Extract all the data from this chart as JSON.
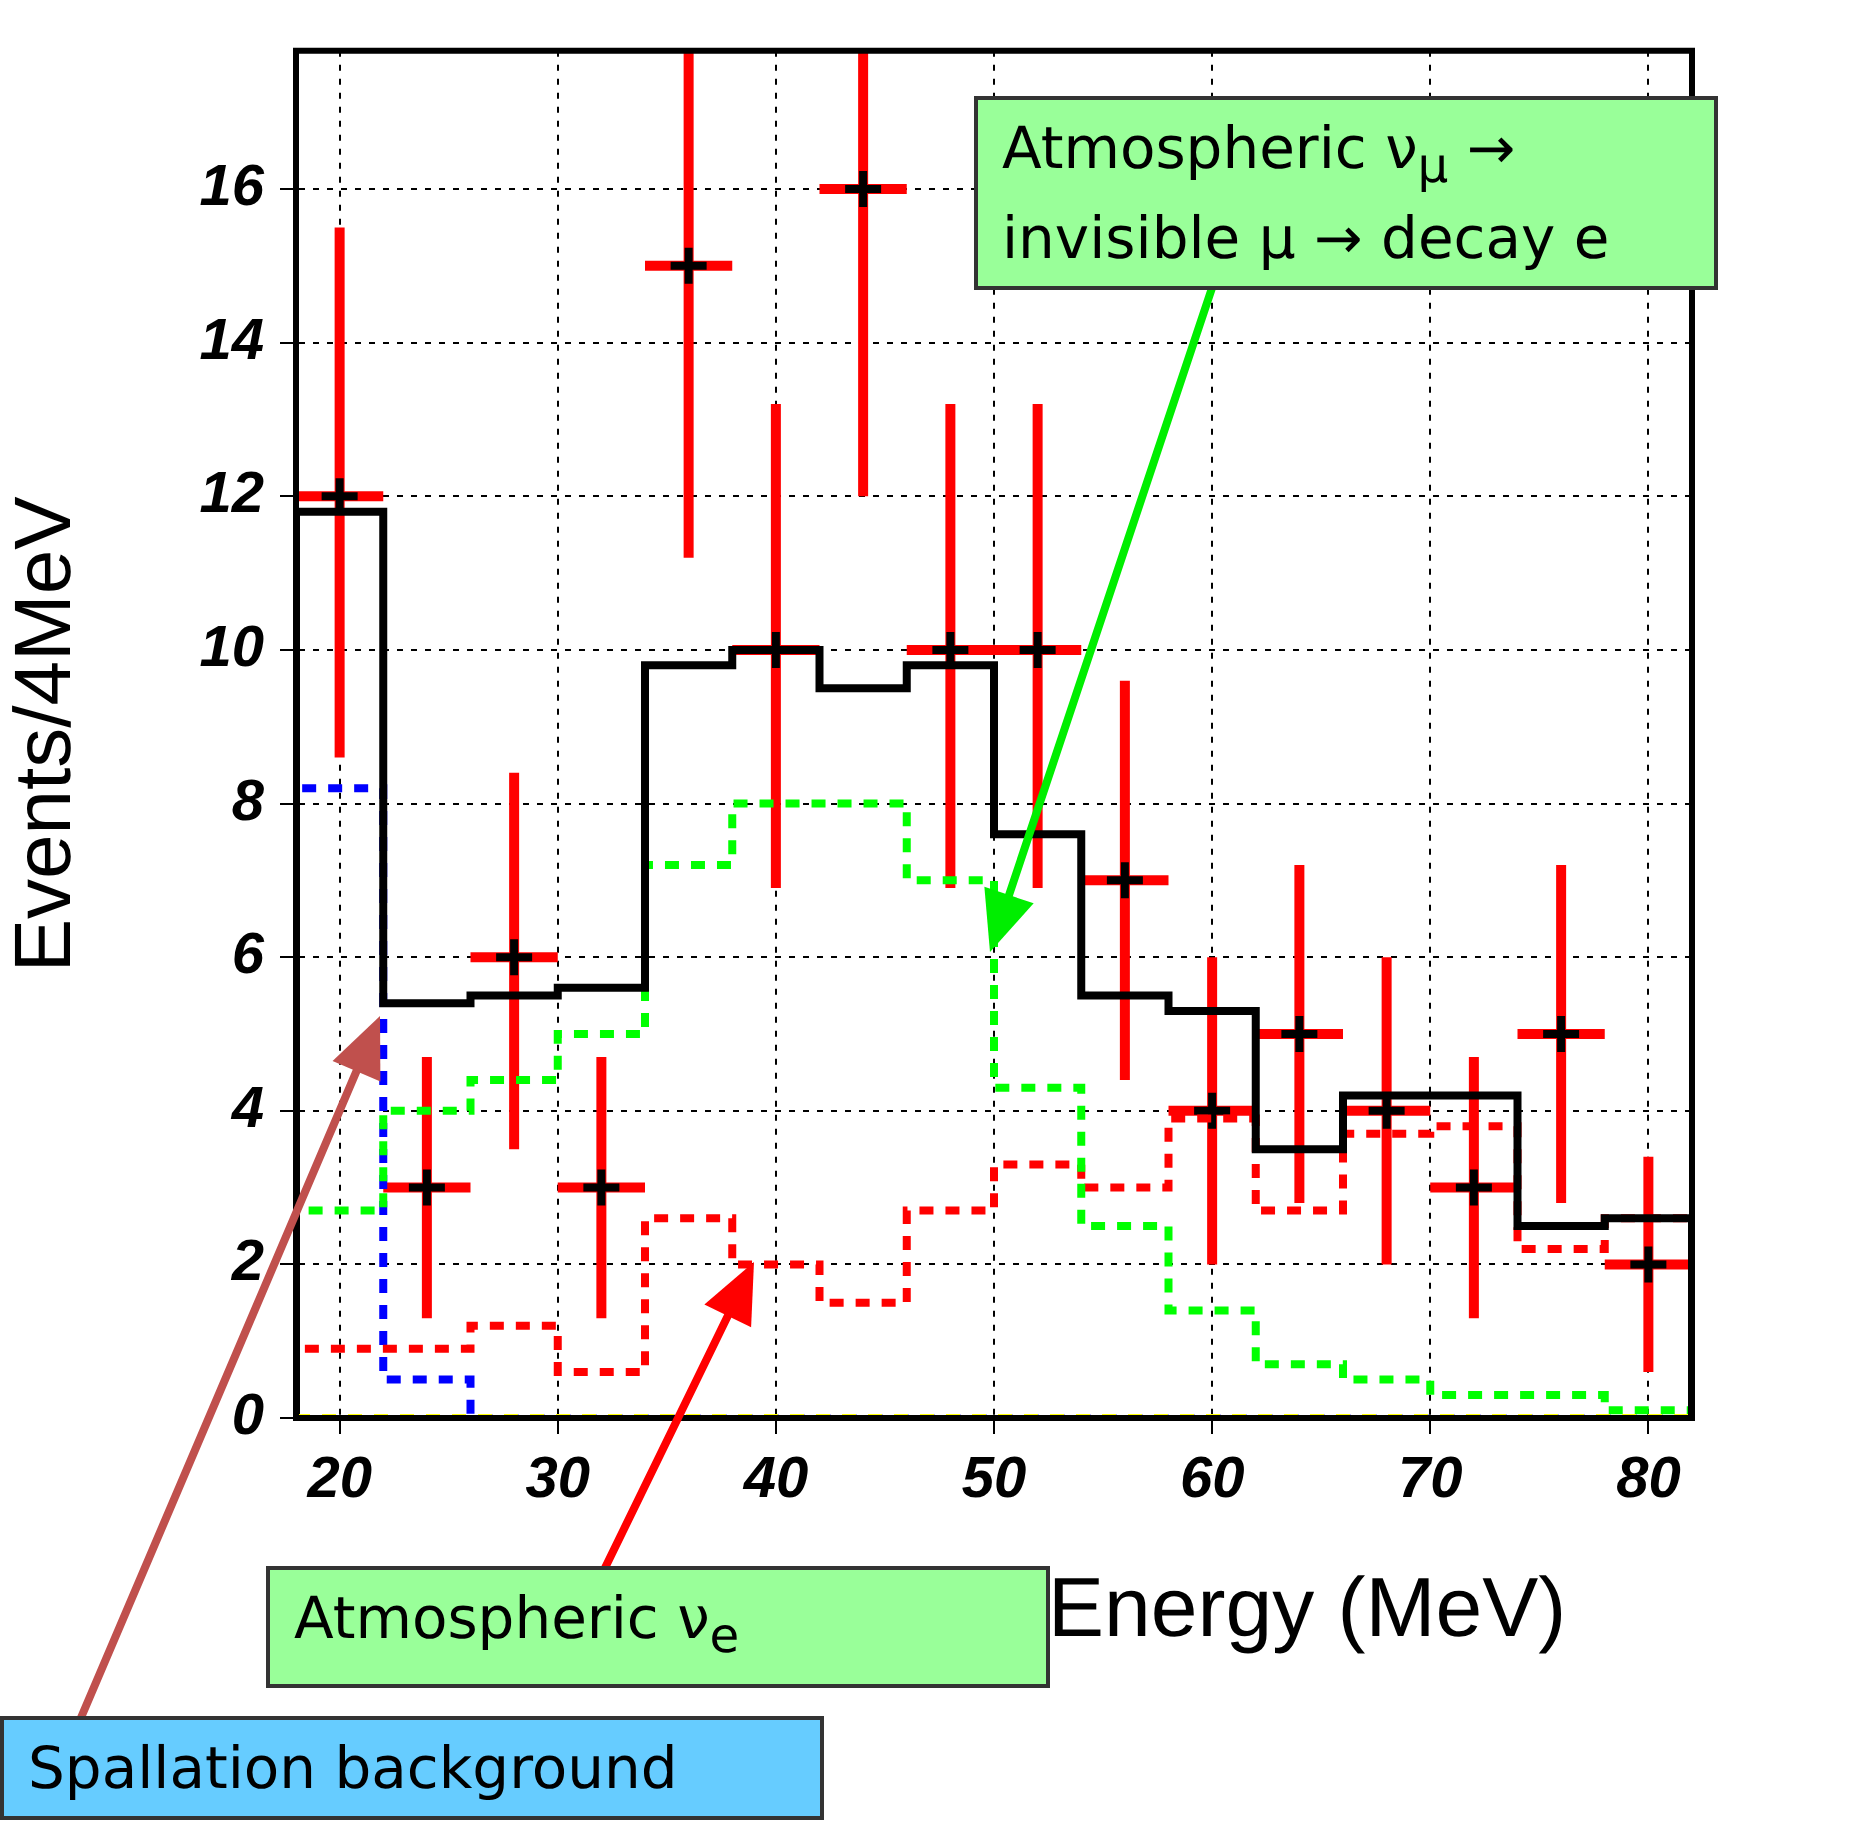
{
  "chart_data": {
    "type": "histogram",
    "xlabel": "Energy (MeV)",
    "ylabel": "Events/4MeV",
    "bins": [
      18,
      22,
      26,
      30,
      34,
      38,
      42,
      46,
      50,
      54,
      58,
      62,
      66,
      70,
      74,
      78,
      82
    ],
    "xlim": [
      18,
      82
    ],
    "xticks": [
      20,
      30,
      40,
      50,
      60,
      70,
      80
    ],
    "ylim": [
      0,
      17.8
    ],
    "yticks": [
      0,
      2,
      4,
      6,
      8,
      10,
      12,
      14,
      16
    ],
    "grid": true,
    "legend": false,
    "series": [
      {
        "type": "histogram",
        "color": "#ffff00",
        "line_style": "dashed",
        "values": [
          0,
          0,
          0,
          0,
          0,
          0,
          0,
          0,
          0,
          0,
          0,
          0,
          0,
          0,
          0,
          0
        ]
      },
      {
        "type": "histogram",
        "color": "#000000",
        "line_style": "solid",
        "values": [
          11.8,
          5.4,
          5.5,
          5.6,
          9.8,
          10,
          9.5,
          9.8,
          7.6,
          5.5,
          5.3,
          3.5,
          4.2,
          4.2,
          2.5,
          2.6
        ]
      },
      {
        "type": "histogram",
        "color": "#00ff00",
        "line_style": "dashed",
        "values": [
          2.7,
          4,
          4.4,
          5,
          7.2,
          8,
          8,
          7,
          4.3,
          2.5,
          1.4,
          0.7,
          0.5,
          0.3,
          0.3,
          0.1
        ]
      },
      {
        "type": "histogram",
        "color": "#ff0000",
        "line_style": "dashed",
        "values": [
          0.9,
          0.9,
          1.2,
          0.6,
          2.6,
          2,
          1.5,
          2.7,
          3.3,
          3,
          3.9,
          2.7,
          3.7,
          3.8,
          2.2,
          2.6
        ]
      },
      {
        "type": "histogram",
        "color": "#0000ff",
        "line_style": "dashed",
        "values": [
          8.2,
          0.5,
          0,
          0,
          0,
          0,
          0,
          0,
          0,
          0,
          0,
          0,
          0,
          0,
          0,
          0
        ]
      },
      {
        "type": "scatter",
        "color": "#000000",
        "marker": "cross",
        "x": [
          20,
          24,
          28,
          32,
          36,
          40,
          44,
          48,
          52,
          56,
          60,
          64,
          68,
          72,
          76,
          80
        ],
        "values": [
          12,
          3,
          6,
          3,
          15,
          10,
          16,
          10,
          10,
          7,
          4,
          5,
          4,
          3,
          5,
          2
        ],
        "errors": [
          [
            8.6,
            15.5
          ],
          [
            1.3,
            4.7
          ],
          [
            3.5,
            8.4
          ],
          [
            1.3,
            4.7
          ],
          [
            11.2,
            17.8
          ],
          [
            6.9,
            13.2
          ],
          [
            12,
            17.8
          ],
          [
            6.9,
            13.2
          ],
          [
            6.9,
            13.2
          ],
          [
            4.4,
            9.6
          ],
          [
            2,
            6
          ],
          [
            2.8,
            7.2
          ],
          [
            2,
            6
          ],
          [
            1.3,
            4.7
          ],
          [
            2.8,
            7.2
          ],
          [
            0.6,
            3.4
          ]
        ],
        "xerrors": [
          2,
          2,
          2,
          2,
          2,
          2,
          2,
          2,
          2,
          2,
          2,
          2,
          2,
          2,
          2,
          2
        ]
      }
    ],
    "annotations": [
      "Atmospheric ν$_{μ}$ → invisible μ → decay e",
      "Atmospheric ν$_{e}$",
      "Spallation background"
    ]
  }
}
